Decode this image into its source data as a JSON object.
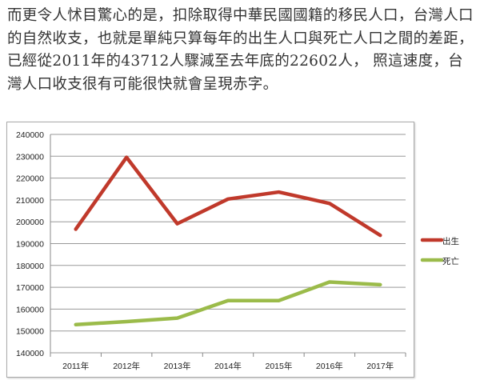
{
  "article": {
    "paragraph": "而更令人怵目驚心的是，扣除取得中華民國國籍的移民人口，台灣人口的自然收支，也就是單純只算每年的出生人口與死亡人口之間的差距，已經從2011年的43712人驟減至去年底的22602人， 照這速度，台灣人口收支很有可能很快就會呈現赤字。"
  },
  "chart_data": {
    "type": "line",
    "title": "",
    "xlabel": "",
    "ylabel": "",
    "categories": [
      "2011年",
      "2012年",
      "2013年",
      "2014年",
      "2015年",
      "2016年",
      "2017年"
    ],
    "series": [
      {
        "name": "出生",
        "color": "#c0392b",
        "values": [
          196600,
          229500,
          199100,
          210400,
          213600,
          208400,
          193800
        ]
      },
      {
        "name": "死亡",
        "color": "#9bbb4a",
        "values": [
          152900,
          154300,
          155900,
          163900,
          163900,
          172400,
          171200
        ]
      }
    ],
    "ylim": [
      140000,
      240000
    ],
    "yticks": [
      "140000",
      "150000",
      "160000",
      "170000",
      "180000",
      "190000",
      "200000",
      "210000",
      "220000",
      "230000",
      "240000"
    ],
    "grid": true,
    "legend": "right"
  }
}
